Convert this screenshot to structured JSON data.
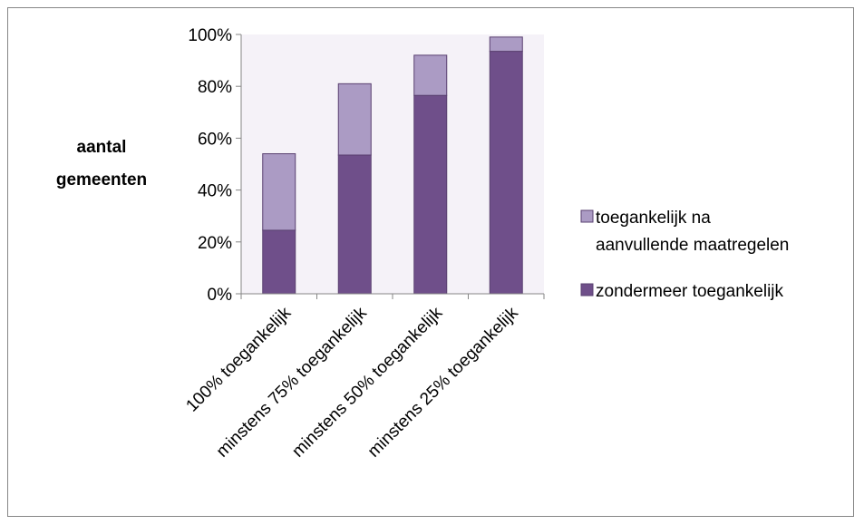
{
  "chart_data": {
    "type": "bar",
    "stacked": true,
    "categories": [
      "100% toegankelijk",
      "minstens 75% toegankelijk",
      "minstens 50% toegankelijk",
      "minstens 25% toegankelijk"
    ],
    "series": [
      {
        "name": "zondermeer toegankelijk",
        "values": [
          24.5,
          53.5,
          76.5,
          93.5
        ],
        "color": "#6f4f8a"
      },
      {
        "name": "toegankelijk na aanvullende maatregelen",
        "values": [
          29.5,
          27.5,
          15.5,
          5.5
        ],
        "color": "#ab9bc4"
      }
    ],
    "ylabel_lines": [
      "aantal",
      "gemeenten"
    ],
    "ytick_labels": [
      "0%",
      "20%",
      "40%",
      "60%",
      "80%",
      "100%"
    ],
    "ylim": [
      0,
      100
    ],
    "grid": false,
    "plot_background": "#f5f2f8",
    "legend": {
      "position": "right",
      "items": [
        {
          "lines": [
            "toegankelijk na",
            "aanvullende maatregelen"
          ],
          "color": "#ab9bc4"
        },
        {
          "lines": [
            "zondermeer toegankelijk"
          ],
          "color": "#6f4f8a"
        }
      ]
    }
  }
}
